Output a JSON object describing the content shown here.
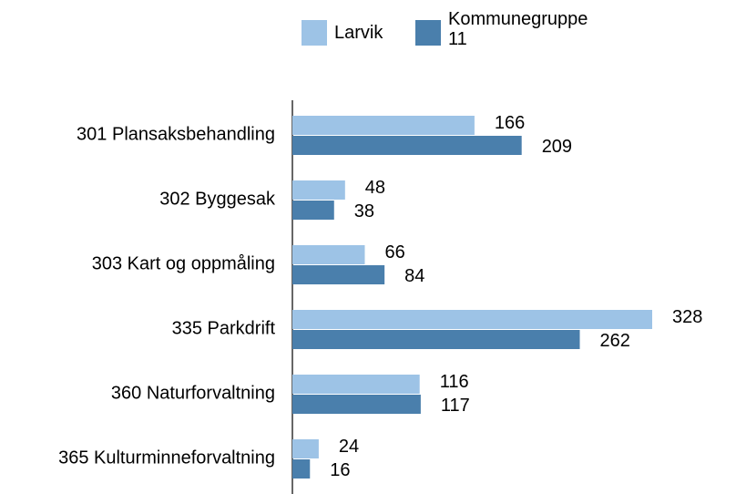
{
  "chart_data": {
    "type": "hbar",
    "categories": [
      "301 Plansaksbehandling",
      "302 Byggesak",
      "303 Kart og oppmåling",
      "335 Parkdrift",
      "360 Naturforvaltning",
      "365 Kulturminneforvaltning"
    ],
    "series": [
      {
        "name": "Larvik",
        "color": "#9dc3e6",
        "values": [
          166,
          48,
          66,
          328,
          116,
          24
        ]
      },
      {
        "name": "Kommunegruppe 11",
        "color": "#4a7fac",
        "values": [
          209,
          38,
          84,
          262,
          117,
          16
        ]
      }
    ]
  }
}
